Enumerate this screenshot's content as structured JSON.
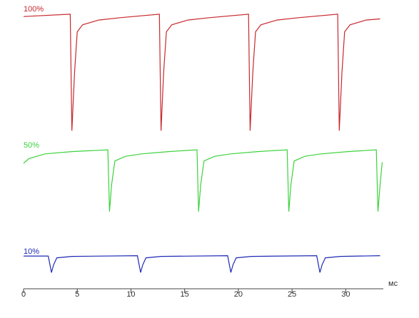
{
  "chart_data": {
    "type": "line",
    "x_label": "мс",
    "xlim": [
      0,
      33.5
    ],
    "xticks": [
      0,
      5,
      10,
      15,
      20,
      25,
      30
    ],
    "ylim": [
      -1.05,
      0.05
    ],
    "series": [
      {
        "name": "100%",
        "color": "#c8282d",
        "x": [
          0,
          4.35,
          4.5,
          4.75,
          5.0,
          5.5,
          7.0,
          9.0,
          12.65,
          12.8,
          13.05,
          13.3,
          13.8,
          15.3,
          17.3,
          20.95,
          21.1,
          21.35,
          21.6,
          22.1,
          23.6,
          25.6,
          29.25,
          29.4,
          29.65,
          29.9,
          30.4,
          31.9,
          33.2
        ],
        "values": [
          -0.03,
          -0.01,
          -1.0,
          -0.5,
          -0.16,
          -0.1,
          -0.06,
          -0.04,
          -0.01,
          -1.0,
          -0.5,
          -0.16,
          -0.1,
          -0.06,
          -0.04,
          -0.01,
          -1.0,
          -0.5,
          -0.16,
          -0.1,
          -0.06,
          -0.04,
          -0.01,
          -1.0,
          -0.5,
          -0.16,
          -0.1,
          -0.06,
          -0.05
        ]
      },
      {
        "name": "50%",
        "color": "#3cd23c",
        "x": [
          0,
          0.5,
          2,
          4.5,
          7.85,
          8.0,
          8.2,
          8.5,
          9.5,
          11.0,
          13.5,
          16.15,
          16.3,
          16.5,
          16.8,
          17.8,
          19.3,
          21.8,
          24.55,
          24.7,
          24.9,
          25.2,
          26.2,
          27.7,
          30.2,
          32.85,
          33.0,
          33.2,
          33.4
        ],
        "values": [
          -0.12,
          -0.08,
          -0.04,
          -0.02,
          -0.005,
          -0.53,
          -0.3,
          -0.1,
          -0.06,
          -0.04,
          -0.02,
          -0.005,
          -0.53,
          -0.3,
          -0.1,
          -0.06,
          -0.04,
          -0.02,
          -0.005,
          -0.53,
          -0.3,
          -0.1,
          -0.06,
          -0.04,
          -0.02,
          -0.005,
          -0.53,
          -0.3,
          -0.11
        ]
      },
      {
        "name": "10%",
        "color": "#1e2ab4",
        "x": [
          0,
          2.3,
          2.6,
          2.8,
          3.1,
          4.5,
          10.6,
          10.9,
          11.1,
          11.4,
          12.8,
          19.0,
          19.3,
          19.5,
          19.8,
          21.2,
          27.3,
          27.6,
          27.8,
          28.1,
          29.5,
          33.2
        ],
        "values": [
          -0.005,
          -0.005,
          -0.145,
          -0.08,
          -0.02,
          -0.008,
          -0.002,
          -0.145,
          -0.08,
          -0.02,
          -0.008,
          -0.002,
          -0.145,
          -0.08,
          -0.02,
          -0.008,
          -0.002,
          -0.145,
          -0.08,
          -0.02,
          -0.008,
          -0.002
        ]
      }
    ]
  }
}
